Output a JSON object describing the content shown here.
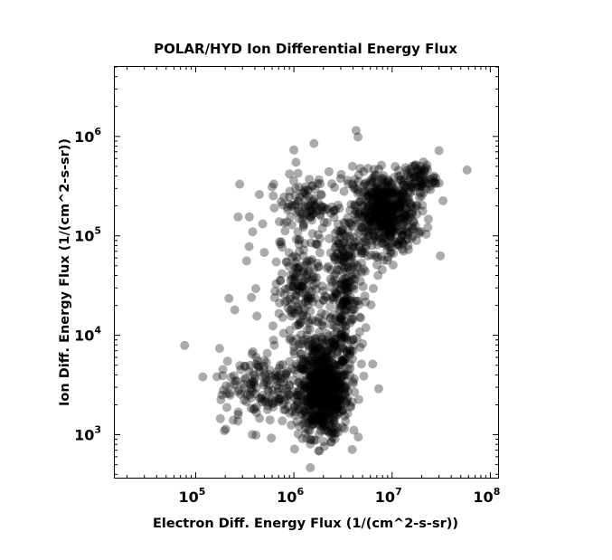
{
  "chart_data": {
    "type": "scatter",
    "title": "POLAR/HYD  Ion Differential Energy Flux",
    "xlabel": "Electron Diff. Energy Flux (1/(cm^2-s-sr))",
    "ylabel": "Ion Diff. Energy Flux (1/(cm^2-s-sr))",
    "x_scale": "log",
    "y_scale": "log",
    "xlim": [
      15000,
      120000000
    ],
    "ylim": [
      370,
      5000000
    ],
    "x_ticks": [
      {
        "value": 100000,
        "base": "10",
        "exp": "5"
      },
      {
        "value": 1000000,
        "base": "10",
        "exp": "6"
      },
      {
        "value": 10000000,
        "base": "10",
        "exp": "7"
      },
      {
        "value": 100000000,
        "base": "10",
        "exp": "8"
      }
    ],
    "y_ticks": [
      {
        "value": 1000,
        "base": "10",
        "exp": "3"
      },
      {
        "value": 10000,
        "base": "10",
        "exp": "4"
      },
      {
        "value": 100000,
        "base": "10",
        "exp": "5"
      },
      {
        "value": 1000000,
        "base": "10",
        "exp": "6"
      }
    ],
    "grid": false,
    "marker_color": "#000000",
    "marker_opacity": 0.33,
    "clusters": [
      {
        "x_center": 2000000,
        "y_center": 2600,
        "x_spread_dex": 0.13,
        "y_spread_dex": 0.22,
        "count": 650
      },
      {
        "x_center": 8500000,
        "y_center": 170000,
        "x_spread_dex": 0.16,
        "y_spread_dex": 0.2,
        "count": 560
      },
      {
        "x_center": 3300000,
        "y_center": 30000,
        "x_spread_dex": 0.09,
        "y_spread_dex": 0.42,
        "count": 240
      },
      {
        "x_center": 1100000,
        "y_center": 28000,
        "x_spread_dex": 0.1,
        "y_spread_dex": 0.23,
        "count": 120
      },
      {
        "x_center": 1300000,
        "y_center": 200000,
        "x_spread_dex": 0.13,
        "y_spread_dex": 0.12,
        "count": 80
      },
      {
        "x_center": 500000,
        "y_center": 3000,
        "x_spread_dex": 0.24,
        "y_spread_dex": 0.2,
        "count": 170
      },
      {
        "x_center": 1800000,
        "y_center": 7500,
        "x_spread_dex": 0.2,
        "y_spread_dex": 0.2,
        "count": 130
      },
      {
        "x_center": 1500000,
        "y_center": 80000,
        "x_spread_dex": 0.3,
        "y_spread_dex": 0.4,
        "count": 90
      },
      {
        "x_center": 19000000,
        "y_center": 380000,
        "x_spread_dex": 0.08,
        "y_spread_dex": 0.08,
        "count": 70
      }
    ],
    "outliers": [
      {
        "x": 1600000,
        "y": 850000
      },
      {
        "x": 4300000,
        "y": 1150000
      },
      {
        "x": 58000000,
        "y": 460000
      },
      {
        "x": 30000000,
        "y": 720000
      },
      {
        "x": 270000,
        "y": 155000
      },
      {
        "x": 31000000,
        "y": 63000
      },
      {
        "x": 33000000,
        "y": 225000
      },
      {
        "x": 250000,
        "y": 18000
      },
      {
        "x": 7300000,
        "y": 2900
      },
      {
        "x": 2400000,
        "y": 850
      },
      {
        "x": 1600000,
        "y": 880
      },
      {
        "x": 350000,
        "y": 78000
      },
      {
        "x": 370000,
        "y": 24000
      },
      {
        "x": 330000,
        "y": 56000
      },
      {
        "x": 380000,
        "y": 110000
      },
      {
        "x": 900000,
        "y": 420000
      },
      {
        "x": 1000000,
        "y": 730000
      },
      {
        "x": 1050000,
        "y": 550000
      }
    ]
  }
}
